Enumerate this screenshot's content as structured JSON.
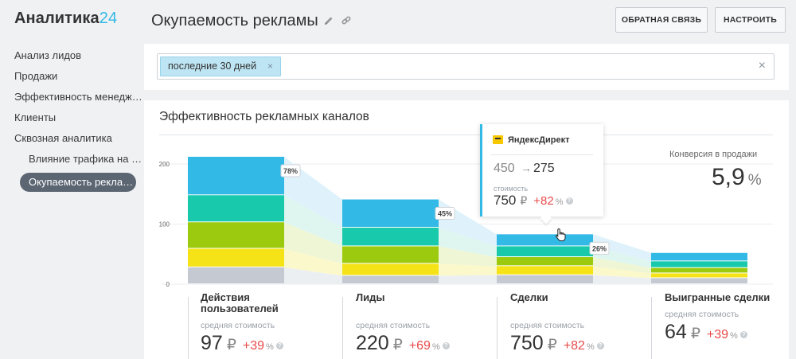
{
  "app": {
    "logo_main": "Аналитика",
    "logo_accent": "24"
  },
  "sidebar": {
    "items": [
      {
        "label": "Анализ лидов"
      },
      {
        "label": "Продажи"
      },
      {
        "label": "Эффективность менеджеров"
      },
      {
        "label": "Клиенты"
      },
      {
        "label": "Сквозная аналитика"
      }
    ],
    "subitems": [
      {
        "label": "Влияние трафика на продажи"
      },
      {
        "label": "Окупаемость рекламы"
      }
    ]
  },
  "header": {
    "title": "Окупаемость рекламы",
    "feedback_label": "ОБРАТНАЯ СВЯЗЬ",
    "settings_label": "НАСТРОИТЬ"
  },
  "filter": {
    "chip_label": "последние 30 дней",
    "chip_remove": "×",
    "clear": "×"
  },
  "card": {
    "title": "Эффективность рекламных каналов",
    "conversion_label": "Конверсия в продажи",
    "conversion_value": "5,9",
    "conversion_unit": "%"
  },
  "tooltip": {
    "source": "ЯндексДирект",
    "from": "450",
    "arrow": "→",
    "to": "275",
    "cost_label": "стоимость",
    "cost": "750",
    "currency": "₽",
    "change": "+82",
    "change_unit": "%",
    "help": "?"
  },
  "stages": [
    {
      "name": "Действия пользователей",
      "cost_label": "средняя стоимость",
      "cost": "97",
      "currency": "₽",
      "change": "+39",
      "change_unit": "%",
      "help": "?"
    },
    {
      "name": "Лиды",
      "cost_label": "средняя стоимость",
      "cost": "220",
      "currency": "₽",
      "change": "+69",
      "change_unit": "%",
      "help": "?"
    },
    {
      "name": "Сделки",
      "cost_label": "средняя стоимость",
      "cost": "750",
      "currency": "₽",
      "change": "+82",
      "change_unit": "%",
      "help": "?"
    },
    {
      "name": "Выигранные сделки",
      "cost_label": "средняя стоимость",
      "cost": "64",
      "currency": "₽",
      "change": "+39",
      "change_unit": "%",
      "help": "?"
    }
  ],
  "chart_data": {
    "type": "bar",
    "categories": [
      "Действия пользователей",
      "Лиды",
      "Сделки",
      "Выигранные сделки"
    ],
    "yticks": [
      "200",
      "100",
      "0"
    ],
    "ylim": [
      0,
      200
    ],
    "conversion_labels": [
      "78%",
      "45%",
      "26%"
    ],
    "colors": [
      "#c4c9d2",
      "#f5e318",
      "#9cca0f",
      "#19c9ac",
      "#33b9e6"
    ],
    "flow_colors": [
      "#eceff2",
      "#fbf8cc",
      "#eef6d6",
      "#dff6f0",
      "#dff2fb"
    ],
    "series_stacks": [
      [
        28,
        31,
        44,
        45,
        64
      ],
      [
        14,
        20,
        29,
        31,
        47
      ],
      [
        15,
        15,
        15,
        18,
        20
      ],
      [
        10,
        8,
        9,
        11,
        14
      ]
    ]
  }
}
